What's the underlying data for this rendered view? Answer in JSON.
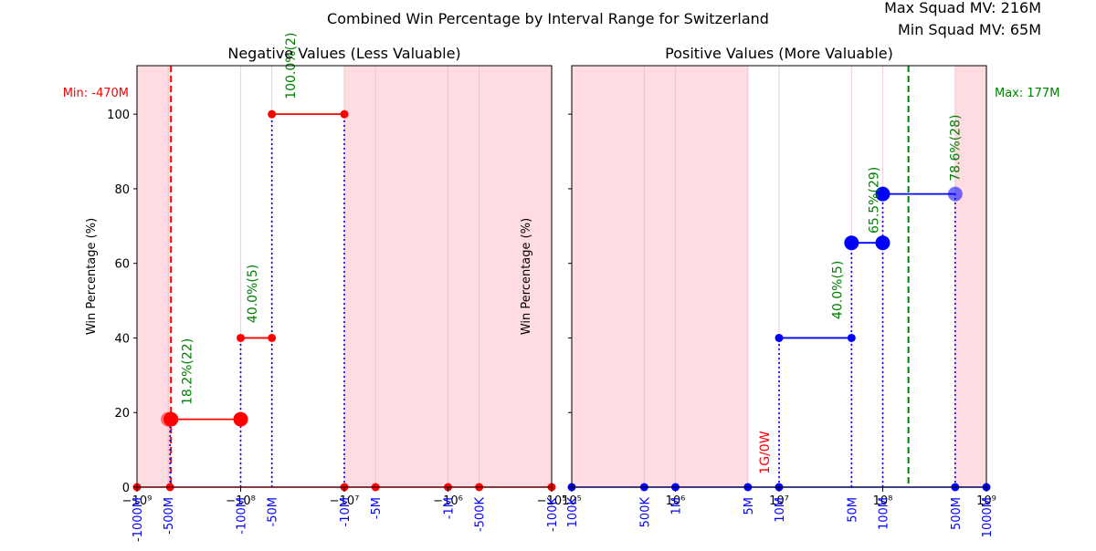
{
  "figure": {
    "title": "Combined Win Percentage by Interval Range for Switzerland",
    "max_squad_mv": "Max Squad MV: 216M",
    "min_squad_mv": "Min Squad MV: 65M"
  },
  "colors": {
    "negative_line": "#ff0000",
    "positive_line": "#0000ff",
    "shade": "#ffc0cb",
    "annotation": "#008000",
    "tick_label": "#0000ff",
    "min_line": "#ff0000",
    "max_line": "#008000"
  },
  "chart_data": [
    {
      "type": "line",
      "title": "Negative Values (Less Valuable)",
      "xscale": "symlog-negative",
      "ylabel": "Win Percentage (%)",
      "ylim": [
        0,
        113
      ],
      "yticks": [
        0,
        20,
        40,
        60,
        80,
        100
      ],
      "xticks": [
        {
          "value": -1000000000,
          "label": "−10⁹"
        },
        {
          "value": -100000000,
          "label": "−10⁸"
        },
        {
          "value": -10000000,
          "label": "−10⁷"
        },
        {
          "value": -1000000,
          "label": "−10⁶"
        },
        {
          "value": -100000,
          "label": "−10⁵"
        }
      ],
      "interval_labels": [
        {
          "value": -1000000000,
          "label": "-1000M"
        },
        {
          "value": -500000000,
          "label": "-500M"
        },
        {
          "value": -100000000,
          "label": "-100M"
        },
        {
          "value": -50000000,
          "label": "-50M"
        },
        {
          "value": -10000000,
          "label": "-10M"
        },
        {
          "value": -5000000,
          "label": "-5M"
        },
        {
          "value": -1000000,
          "label": "-1M"
        },
        {
          "value": -500000,
          "label": "-500K"
        },
        {
          "value": -100000,
          "label": "-100K"
        }
      ],
      "reference_line": {
        "value": -470000000,
        "label": "Min: -470M",
        "style": "dashed"
      },
      "shaded_ranges": [
        [
          -1000000000,
          -470000000
        ],
        [
          -10000000,
          -100000
        ]
      ],
      "steps": [
        {
          "x0": -470000000,
          "x1": -100000000,
          "y": 18.2
        },
        {
          "x0": -100000000,
          "x1": -50000000,
          "y": 40
        },
        {
          "x0": -50000000,
          "x1": -10000000,
          "y": 100
        }
      ],
      "dotted_drops": [
        {
          "x": -480000000,
          "y": 18.2
        },
        {
          "x": -100000000,
          "y": 40
        },
        {
          "x": -50000000,
          "y": 100
        },
        {
          "x": -10000000,
          "y": 100
        }
      ],
      "points": [
        {
          "x": -1000000000,
          "y": 0,
          "size": "small"
        },
        {
          "x": -480000000,
          "y": 0,
          "size": "small"
        },
        {
          "x": -10000000,
          "y": 0,
          "size": "small"
        },
        {
          "x": -5000000,
          "y": 0,
          "size": "small"
        },
        {
          "x": -1000000,
          "y": 0,
          "size": "small"
        },
        {
          "x": -500000,
          "y": 0,
          "size": "small"
        },
        {
          "x": -100000,
          "y": 0,
          "size": "small"
        },
        {
          "x": -500000000,
          "y": 18.2,
          "size": "large",
          "faded": true
        },
        {
          "x": -470000000,
          "y": 18.2,
          "size": "large"
        },
        {
          "x": -100000000,
          "y": 18.2,
          "size": "large"
        },
        {
          "x": -100000000,
          "y": 40,
          "size": "small"
        },
        {
          "x": -50000000,
          "y": 40,
          "size": "small"
        },
        {
          "x": -50000000,
          "y": 100,
          "size": "small"
        },
        {
          "x": -10000000,
          "y": 100,
          "size": "small"
        }
      ],
      "annotations": [
        {
          "x": -300000000,
          "y": 22,
          "text": "18.2%(22)",
          "color": "green"
        },
        {
          "x": -70000000,
          "y": 44,
          "text": "40.0%(5)",
          "color": "green"
        },
        {
          "x": -30000000,
          "y": 104,
          "text": "100.0%(2)",
          "color": "green"
        }
      ]
    },
    {
      "type": "line",
      "title": "Positive Values (More Valuable)",
      "xscale": "log",
      "ylabel": "Win Percentage (%)",
      "ylim": [
        0,
        113
      ],
      "yticks": [
        0,
        20,
        40,
        60,
        80,
        100
      ],
      "xticks": [
        {
          "value": 100000,
          "label": "10⁵"
        },
        {
          "value": 1000000,
          "label": "10⁶"
        },
        {
          "value": 10000000,
          "label": "10⁷"
        },
        {
          "value": 100000000,
          "label": "10⁸"
        },
        {
          "value": 1000000000,
          "label": "10⁹"
        }
      ],
      "interval_labels": [
        {
          "value": 100000,
          "label": "100K"
        },
        {
          "value": 500000,
          "label": "500K"
        },
        {
          "value": 1000000,
          "label": "1M"
        },
        {
          "value": 5000000,
          "label": "5M"
        },
        {
          "value": 10000000,
          "label": "10M"
        },
        {
          "value": 50000000,
          "label": "50M"
        },
        {
          "value": 100000000,
          "label": "100M"
        },
        {
          "value": 500000000,
          "label": "500M"
        },
        {
          "value": 1000000000,
          "label": "1000M"
        }
      ],
      "reference_line": {
        "value": 177000000,
        "label": "Max: 177M",
        "style": "dashed"
      },
      "shaded_ranges": [
        [
          100000,
          5000000
        ],
        [
          500000000,
          1000000000
        ]
      ],
      "steps": [
        {
          "x0": 10000000,
          "x1": 50000000,
          "y": 40
        },
        {
          "x0": 50000000,
          "x1": 100000000,
          "y": 65.5
        },
        {
          "x0": 100000000,
          "x1": 500000000,
          "y": 78.6
        }
      ],
      "dotted_drops": [
        {
          "x": 10000000,
          "y": 40
        },
        {
          "x": 50000000,
          "y": 65.5
        },
        {
          "x": 100000000,
          "y": 78.6
        },
        {
          "x": 500000000,
          "y": 78.6
        }
      ],
      "points": [
        {
          "x": 100000,
          "y": 0,
          "size": "small"
        },
        {
          "x": 500000,
          "y": 0,
          "size": "small"
        },
        {
          "x": 1000000,
          "y": 0,
          "size": "small"
        },
        {
          "x": 5000000,
          "y": 0,
          "size": "small"
        },
        {
          "x": 10000000,
          "y": 0,
          "size": "small"
        },
        {
          "x": 500000000,
          "y": 0,
          "size": "small"
        },
        {
          "x": 1000000000,
          "y": 0,
          "size": "small"
        },
        {
          "x": 10000000,
          "y": 40,
          "size": "small"
        },
        {
          "x": 50000000,
          "y": 40,
          "size": "small"
        },
        {
          "x": 50000000,
          "y": 65.5,
          "size": "large"
        },
        {
          "x": 100000000,
          "y": 65.5,
          "size": "large"
        },
        {
          "x": 100000000,
          "y": 78.6,
          "size": "large"
        },
        {
          "x": 500000000,
          "y": 78.6,
          "size": "large",
          "faded": true
        }
      ],
      "annotations": [
        {
          "x": 8000000,
          "y": 3.5,
          "text": "1G/0W",
          "color": "red"
        },
        {
          "x": 40000000,
          "y": 45,
          "text": "40.0%(5)",
          "color": "green"
        },
        {
          "x": 90000000,
          "y": 68,
          "text": "65.5%(29)",
          "color": "green"
        },
        {
          "x": 550000000,
          "y": 82,
          "text": "78.6%(28)",
          "color": "green"
        }
      ]
    }
  ]
}
